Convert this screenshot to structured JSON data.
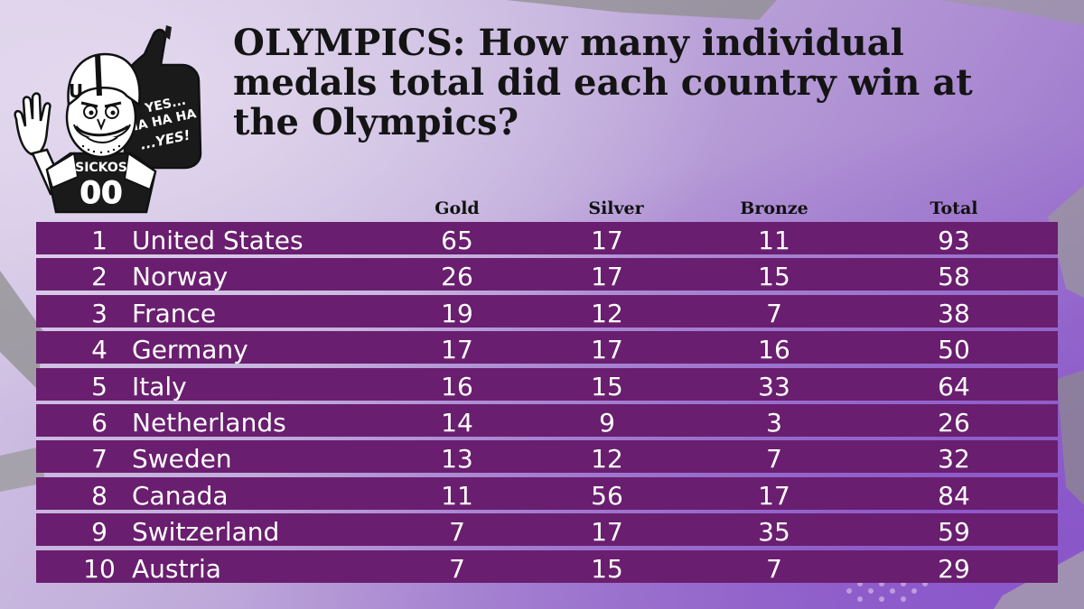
{
  "title": "OLYMPICS: How many individual medals total did each country win at the Olympics?",
  "mascot": {
    "jersey_text": "SICKOS",
    "jersey_number": "00",
    "sign_line1": "YES...",
    "sign_line2": "HA HA HA",
    "sign_line3": "...YES!",
    "helmet_letter": "U"
  },
  "colors": {
    "row_background": "#6a1e6f",
    "row_text": "#ffffff",
    "title_text": "#141414",
    "background": "#b9a4d3"
  },
  "chart_data": {
    "type": "table",
    "title": "OLYMPICS: How many individual medals total did each country win at the Olympics?",
    "columns": [
      "Gold",
      "Silver",
      "Bronze",
      "Total"
    ],
    "rows": [
      {
        "rank": "1",
        "country": "United States",
        "gold": "65",
        "silver": "17",
        "bronze": "11",
        "total": "93"
      },
      {
        "rank": "2",
        "country": "Norway",
        "gold": "26",
        "silver": "17",
        "bronze": "15",
        "total": "58"
      },
      {
        "rank": "3",
        "country": "France",
        "gold": "19",
        "silver": "12",
        "bronze": "7",
        "total": "38"
      },
      {
        "rank": "4",
        "country": "Germany",
        "gold": "17",
        "silver": "17",
        "bronze": "16",
        "total": "50"
      },
      {
        "rank": "5",
        "country": "Italy",
        "gold": "16",
        "silver": "15",
        "bronze": "33",
        "total": "64"
      },
      {
        "rank": "6",
        "country": "Netherlands",
        "gold": "14",
        "silver": "9",
        "bronze": "3",
        "total": "26"
      },
      {
        "rank": "7",
        "country": "Sweden",
        "gold": "13",
        "silver": "12",
        "bronze": "7",
        "total": "32"
      },
      {
        "rank": "8",
        "country": "Canada",
        "gold": "11",
        "silver": "56",
        "bronze": "17",
        "total": "84"
      },
      {
        "rank": "9",
        "country": "Switzerland",
        "gold": "7",
        "silver": "17",
        "bronze": "35",
        "total": "59"
      },
      {
        "rank": "10",
        "country": "Austria",
        "gold": "7",
        "silver": "15",
        "bronze": "7",
        "total": "29"
      }
    ]
  }
}
